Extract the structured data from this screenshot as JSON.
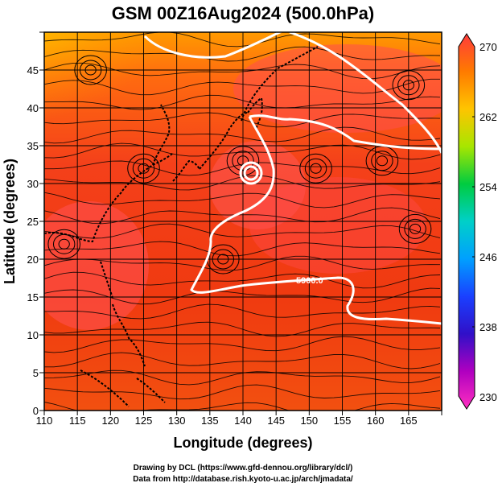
{
  "title": "GSM 00Z16Aug2024 (500.0hPa)",
  "credits": [
    "Drawing by DCL (https://www.gfd-dennou.org/library/dcl/)",
    "Data from http://database.rish.kyoto-u.ac.jp/arch/jmadata/"
  ],
  "map": {
    "xlabel": "Longitude (degrees)",
    "ylabel": "Latitude  (degrees)",
    "xlim": [
      110,
      170
    ],
    "ylim": [
      0,
      50
    ],
    "xticks": [
      "110",
      "115",
      "120",
      "125",
      "130",
      "135",
      "140",
      "145",
      "150",
      "155",
      "160",
      "165"
    ],
    "yticks": [
      "0",
      "5",
      "10",
      "15",
      "20",
      "25",
      "30",
      "35",
      "40",
      "45"
    ],
    "contour_label": "5900.0",
    "colors": {
      "warm_core": "#ff4a3a",
      "background_red": "#f23c12",
      "orange": "#ff8c00",
      "yellow": "#ffe100",
      "contour": "#ffffff",
      "streamline": "#000000"
    }
  },
  "colorbar": {
    "ticks": [
      "270",
      "262",
      "254",
      "246",
      "238",
      "230"
    ],
    "stops": [
      "#ff3b3b",
      "#ff7a00",
      "#ffc400",
      "#a8e600",
      "#00cc40",
      "#00d0c8",
      "#00a0ff",
      "#1a40ff",
      "#3010c8",
      "#b000c0",
      "#ff30c0"
    ]
  }
}
